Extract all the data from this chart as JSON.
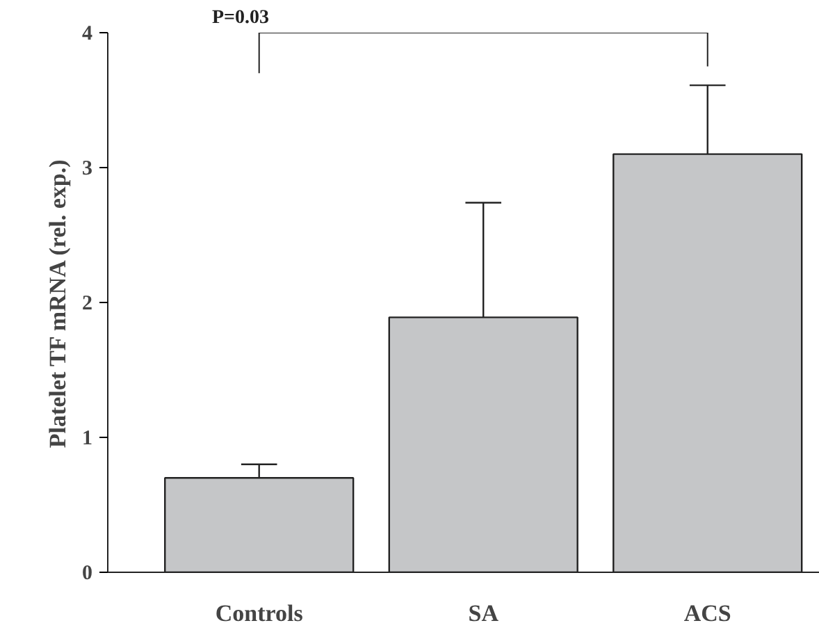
{
  "chart_data": {
    "type": "bar",
    "ylabel": "Platelet TF mRNA (rel. exp.)",
    "categories": [
      "Controls",
      "SA",
      "ACS"
    ],
    "values": [
      0.7,
      1.89,
      3.1
    ],
    "errors": [
      [
        0.7,
        0.8
      ],
      [
        1.89,
        2.74
      ],
      [
        3.1,
        3.61
      ]
    ],
    "color": "#c5c6c8",
    "ylim": [
      0,
      4
    ],
    "yticks": [
      0,
      1,
      2,
      3,
      4
    ],
    "annotations": [
      "P=0.03"
    ],
    "grid": false
  }
}
